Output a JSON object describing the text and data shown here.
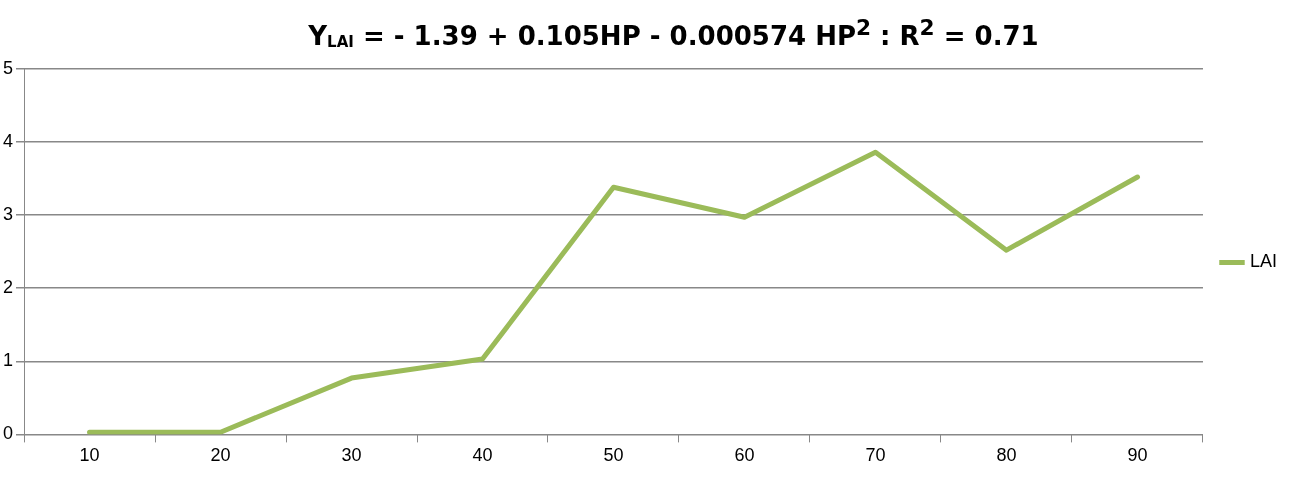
{
  "chart_data": {
    "type": "line",
    "title": "Y$_{LAI}$ =  - 1.39 +  0.105HP -   0.000574 HP$^{2}$   : R$^{2}$ = 0.71",
    "categories": [
      "10",
      "20",
      "30",
      "40",
      "50",
      "60",
      "70",
      "80",
      "90"
    ],
    "series": [
      {
        "name": "LAI",
        "color": "#9bbb59",
        "values": [
          0.03,
          0.03,
          0.77,
          1.03,
          3.38,
          2.97,
          3.86,
          2.52,
          3.52
        ]
      }
    ],
    "ylim": [
      0,
      5
    ],
    "yticks": [
      0,
      1,
      2,
      3,
      4,
      5
    ],
    "grid": "y",
    "legend": "right",
    "marker": "none",
    "line_style": "solid"
  }
}
